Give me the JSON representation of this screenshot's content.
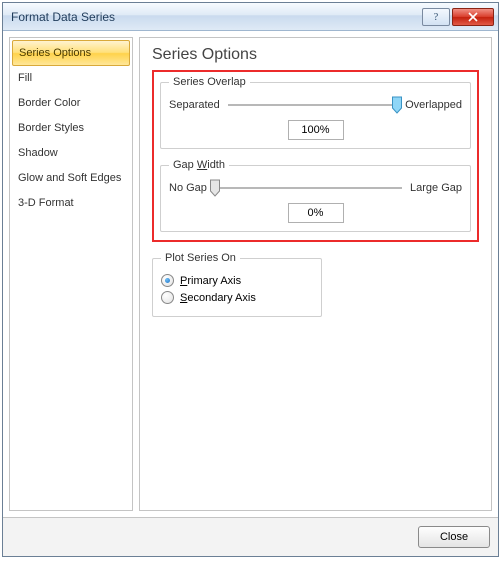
{
  "window": {
    "title": "Format Data Series"
  },
  "sidebar": {
    "items": [
      {
        "label": "Series Options",
        "selected": true
      },
      {
        "label": "Fill",
        "selected": false
      },
      {
        "label": "Border Color",
        "selected": false
      },
      {
        "label": "Border Styles",
        "selected": false
      },
      {
        "label": "Shadow",
        "selected": false
      },
      {
        "label": "Glow and Soft Edges",
        "selected": false
      },
      {
        "label": "3-D Format",
        "selected": false
      }
    ]
  },
  "main": {
    "title": "Series Options",
    "overlap": {
      "legend": "Series Overlap",
      "left": "Separated",
      "right": "Overlapped",
      "value": "100%",
      "thumb_pos_pct": 100,
      "thumb_color": "#58c0ef"
    },
    "gap": {
      "legend_pre": "Gap ",
      "legend_u": "W",
      "legend_post": "idth",
      "left": "No Gap",
      "right": "Large Gap",
      "value": "0%",
      "thumb_pos_pct": 0,
      "thumb_color": "#cfcfcf"
    },
    "plot": {
      "legend": "Plot Series On",
      "primary_pre": "",
      "primary_u": "P",
      "primary_post": "rimary Axis",
      "secondary_pre": "",
      "secondary_u": "S",
      "secondary_post": "econdary Axis",
      "selected": "primary"
    }
  },
  "footer": {
    "close": "Close"
  }
}
